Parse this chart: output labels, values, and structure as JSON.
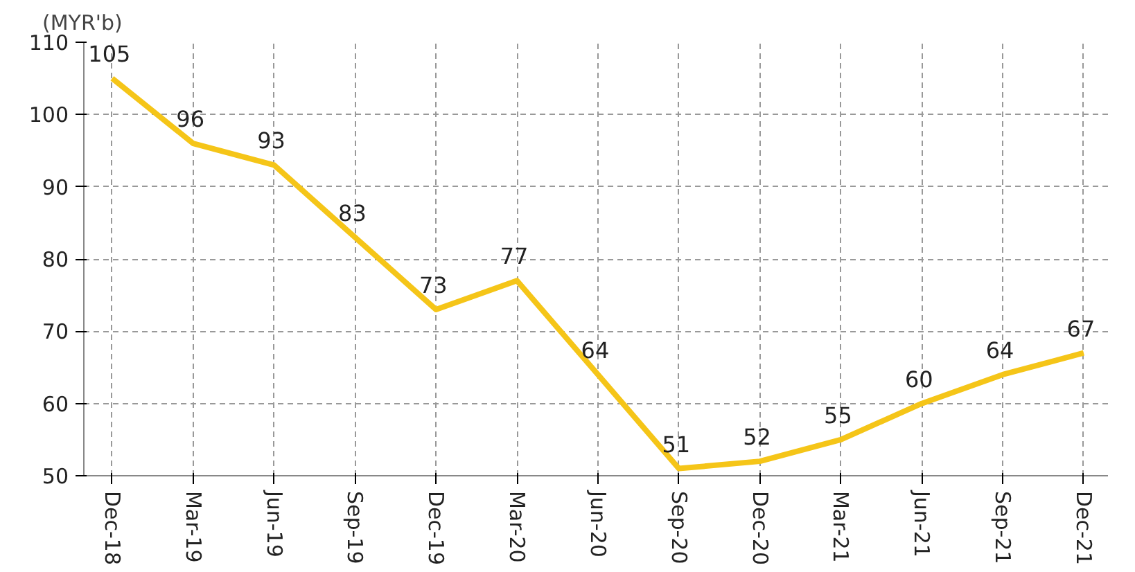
{
  "chart_data": {
    "type": "line",
    "ylabel": "(MYR'b)",
    "categories": [
      "Dec-18",
      "Mar-19",
      "Jun-19",
      "Sep-19",
      "Dec-19",
      "Mar-20",
      "Jun-20",
      "Sep-20",
      "Dec-20",
      "Mar-21",
      "Jun-21",
      "Sep-21",
      "Dec-21"
    ],
    "series": [
      {
        "color": "#f5c518",
        "values": [
          105,
          96,
          93,
          83,
          73,
          77,
          64,
          51,
          52,
          55,
          60,
          64,
          67
        ]
      }
    ],
    "ylim": [
      50,
      110
    ],
    "yticks": [
      50,
      60,
      70,
      80,
      90,
      100,
      110
    ],
    "grid": true,
    "data_labels": true,
    "marker": "none",
    "line_style": "solid"
  }
}
